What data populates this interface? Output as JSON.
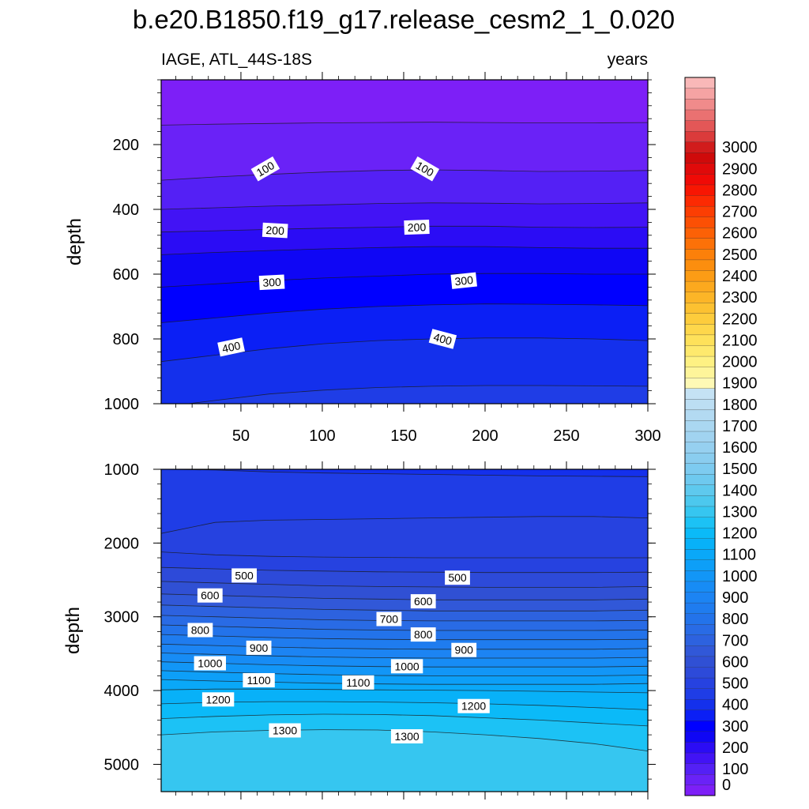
{
  "chart_data": {
    "type": "contour",
    "title": "b.e20.B1850.f19_g17.release_cesm2_1_0.020",
    "left_string": "IAGE, ATL_44S-18S",
    "right_string": "years",
    "x": {
      "range": [
        1,
        300
      ],
      "ticks": [
        50,
        100,
        150,
        200,
        250,
        300
      ],
      "tick_labels": [
        "50",
        "100",
        "150",
        "200",
        "250",
        "300"
      ]
    },
    "panels": [
      {
        "ylabel": "depth",
        "ylim": [
          0,
          1000
        ],
        "reversed": true,
        "yticks": [
          200,
          400,
          600,
          800,
          1000
        ],
        "ytick_labels": [
          "200",
          "400",
          "600",
          "800",
          "1000"
        ],
        "contour_lines": [
          {
            "level": 50,
            "depths": [
              140,
              137,
              135,
              133,
              132,
              131,
              132,
              133,
              133,
              132
            ]
          },
          {
            "level": 100,
            "depths": [
              310,
              300,
              292,
              285,
              280,
              278,
              280,
              283,
              282,
              280
            ]
          },
          {
            "level": 150,
            "depths": [
              400,
              395,
              390,
              386,
              382,
              380,
              381,
              383,
              382,
              380
            ]
          },
          {
            "level": 200,
            "depths": [
              470,
              466,
              462,
              458,
              455,
              452,
              452,
              455,
              456,
              455
            ]
          },
          {
            "level": 250,
            "depths": [
              540,
              533,
              527,
              522,
              518,
              515,
              515,
              518,
              520,
              520
            ]
          },
          {
            "level": 300,
            "depths": [
              640,
              630,
              620,
              612,
              606,
              600,
              598,
              598,
              600,
              600
            ]
          },
          {
            "level": 350,
            "depths": [
              750,
              735,
              720,
              708,
              700,
              695,
              692,
              693,
              695,
              697
            ]
          },
          {
            "level": 400,
            "depths": [
              870,
              850,
              830,
              815,
              805,
              800,
              797,
              797,
              800,
              805
            ]
          },
          {
            "level": 450,
            "depths": [
              1010,
              990,
              970,
              958,
              950,
              946,
              944,
              944,
              945,
              946
            ]
          }
        ],
        "contour_labels": [
          {
            "text": "100",
            "x": 65,
            "depth": 275,
            "angle": -30
          },
          {
            "text": "100",
            "x": 163,
            "depth": 275,
            "angle": 30
          },
          {
            "text": "200",
            "x": 71,
            "depth": 465,
            "angle": 3
          },
          {
            "text": "200",
            "x": 158,
            "depth": 455,
            "angle": -2
          },
          {
            "text": "300",
            "x": 69,
            "depth": 625,
            "angle": -3
          },
          {
            "text": "300",
            "x": 187,
            "depth": 620,
            "angle": -6
          },
          {
            "text": "400",
            "x": 44,
            "depth": 825,
            "angle": -12
          },
          {
            "text": "400",
            "x": 174,
            "depth": 800,
            "angle": 15
          }
        ]
      },
      {
        "ylabel": "depth",
        "ylim": [
          1000,
          5370
        ],
        "reversed": true,
        "yticks": [
          1000,
          2000,
          3000,
          4000,
          5000
        ],
        "ytick_labels": [
          "1000",
          "2000",
          "3000",
          "4000",
          "5000"
        ],
        "contour_lines": [
          {
            "level": 450,
            "depths": [
              1000,
              1010,
              1035,
              1050,
              1060,
              1070,
              1080,
              1090,
              1095,
              1100
            ]
          },
          {
            "level": 500,
            "depths": [
              1870,
              1720,
              1690,
              1680,
              1670,
              1660,
              1650,
              1640,
              1640,
              1660
            ]
          },
          {
            "level": 500,
            "depths": [
              2120,
              2160,
              2180,
              2190,
              2195,
              2200,
              2200,
              2200,
              2200,
              2200
            ]
          },
          {
            "level": 550,
            "depths": [
              2330,
              2350,
              2370,
              2380,
              2390,
              2395,
              2400,
              2400,
              2400,
              2395
            ]
          },
          {
            "level": 600,
            "depths": [
              2520,
              2540,
              2560,
              2580,
              2590,
              2595,
              2600,
              2600,
              2600,
              2590
            ]
          },
          {
            "level": 650,
            "depths": [
              2690,
              2710,
              2730,
              2750,
              2760,
              2770,
              2770,
              2770,
              2770,
              2760
            ]
          },
          {
            "level": 700,
            "depths": [
              2840,
              2860,
              2880,
              2900,
              2910,
              2920,
              2920,
              2920,
              2920,
              2910
            ]
          },
          {
            "level": 750,
            "depths": [
              2980,
              3000,
              3020,
              3040,
              3050,
              3055,
              3055,
              3055,
              3055,
              3050
            ]
          },
          {
            "level": 800,
            "depths": [
              3110,
              3130,
              3150,
              3170,
              3180,
              3185,
              3185,
              3185,
              3185,
              3180
            ]
          },
          {
            "level": 850,
            "depths": [
              3240,
              3260,
              3280,
              3295,
              3305,
              3310,
              3310,
              3310,
              3310,
              3305
            ]
          },
          {
            "level": 900,
            "depths": [
              3370,
              3390,
              3410,
              3425,
              3435,
              3440,
              3440,
              3440,
              3440,
              3430
            ]
          },
          {
            "level": 950,
            "depths": [
              3490,
              3510,
              3530,
              3545,
              3555,
              3560,
              3560,
              3560,
              3560,
              3550
            ]
          },
          {
            "level": 1000,
            "depths": [
              3610,
              3630,
              3650,
              3665,
              3675,
              3680,
              3680,
              3680,
              3680,
              3670
            ]
          },
          {
            "level": 1050,
            "depths": [
              3730,
              3750,
              3770,
              3785,
              3795,
              3800,
              3800,
              3800,
              3800,
              3790
            ]
          },
          {
            "level": 1100,
            "depths": [
              3850,
              3870,
              3885,
              3900,
              3910,
              3915,
              3915,
              3915,
              3915,
              3905
            ]
          },
          {
            "level": 1150,
            "depths": [
              3990,
              3980,
              3980,
              3985,
              3990,
              3995,
              4000,
              4010,
              4020,
              4030
            ]
          },
          {
            "level": 1200,
            "depths": [
              4180,
              4160,
              4150,
              4150,
              4155,
              4165,
              4180,
              4200,
              4230,
              4260
            ]
          },
          {
            "level": 1250,
            "depths": [
              4380,
              4350,
              4330,
              4320,
              4325,
              4340,
              4370,
              4400,
              4440,
              4480
            ]
          },
          {
            "level": 1300,
            "depths": [
              4600,
              4560,
              4540,
              4530,
              4535,
              4560,
              4600,
              4650,
              4720,
              4820
            ]
          }
        ],
        "contour_labels": [
          {
            "text": "500",
            "x": 52,
            "depth": 2440,
            "angle": 0
          },
          {
            "text": "500",
            "x": 183,
            "depth": 2470,
            "angle": 0
          },
          {
            "text": "600",
            "x": 31,
            "depth": 2710,
            "angle": 0
          },
          {
            "text": "600",
            "x": 162,
            "depth": 2790,
            "angle": 0
          },
          {
            "text": "700",
            "x": 141,
            "depth": 3030,
            "angle": 0
          },
          {
            "text": "800",
            "x": 25,
            "depth": 3180,
            "angle": 0
          },
          {
            "text": "800",
            "x": 162,
            "depth": 3240,
            "angle": 0
          },
          {
            "text": "900",
            "x": 61,
            "depth": 3420,
            "angle": 0
          },
          {
            "text": "900",
            "x": 187,
            "depth": 3450,
            "angle": 0
          },
          {
            "text": "1000",
            "x": 31,
            "depth": 3630,
            "angle": 0
          },
          {
            "text": "1000",
            "x": 152,
            "depth": 3670,
            "angle": 0
          },
          {
            "text": "1100",
            "x": 61,
            "depth": 3860,
            "angle": 0
          },
          {
            "text": "1100",
            "x": 122,
            "depth": 3890,
            "angle": 0
          },
          {
            "text": "1200",
            "x": 36,
            "depth": 4120,
            "angle": 0
          },
          {
            "text": "1200",
            "x": 193,
            "depth": 4210,
            "angle": 0
          },
          {
            "text": "1300",
            "x": 77,
            "depth": 4540,
            "angle": 0
          },
          {
            "text": "1300",
            "x": 152,
            "depth": 4620,
            "angle": 0
          }
        ]
      }
    ],
    "colorbar": {
      "orientation": "vertical",
      "labels": [
        "0",
        "100",
        "200",
        "300",
        "400",
        "500",
        "600",
        "700",
        "800",
        "900",
        "1000",
        "1100",
        "1200",
        "1300",
        "1400",
        "1500",
        "1600",
        "1700",
        "1800",
        "1900",
        "2000",
        "2100",
        "2200",
        "2300",
        "2400",
        "2500",
        "2600",
        "2700",
        "2800",
        "2900",
        "3000"
      ],
      "colors": [
        "#7d1ff7",
        "#6a22f7",
        "#5420f5",
        "#4213f5",
        "#2b0cf5",
        "#0f06f5",
        "#0000ff",
        "#0b1ff5",
        "#1430ec",
        "#1f3de6",
        "#2642e0",
        "#2d4ad9",
        "#3050d4",
        "#3158d8",
        "#2d62df",
        "#296be5",
        "#2373ea",
        "#1f7cef",
        "#1c84f3",
        "#178cf5",
        "#1296f7",
        "#0d9ff8",
        "#0aa8f8",
        "#08b1f8",
        "#0bbaf8",
        "#1cc2f5",
        "#36c6f0",
        "#4cc8ee",
        "#5ec9ee",
        "#6ec9ef",
        "#7dcbf0",
        "#8acdef",
        "#96d0f0",
        "#a1d3f0",
        "#aad7f1",
        "#b3daf2",
        "#bcdef3",
        "#c5e2f4",
        "#fef9b5",
        "#fef59a",
        "#fef183",
        "#fee96d",
        "#fee15a",
        "#fed74b",
        "#fdcc3c",
        "#fcc131",
        "#fcb527",
        "#fca91e",
        "#fc9c15",
        "#fc8e0e",
        "#fc800a",
        "#fc7108",
        "#fc6106",
        "#fc5004",
        "#fc3e03",
        "#fc2a02",
        "#f81602",
        "#f00a06",
        "#e00a0a",
        "#cf0a0a",
        "#d11c1c",
        "#db3b3b",
        "#e35757",
        "#ea7171",
        "#f08b8b",
        "#f5a3a3",
        "#f9b8b8"
      ],
      "interval": 50
    }
  }
}
